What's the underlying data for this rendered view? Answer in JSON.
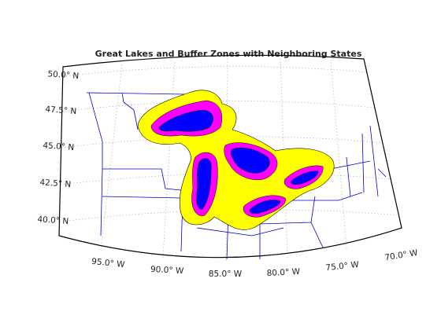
{
  "title": "Great Lakes and Buffer Zones with Neighboring States",
  "parallel_labels": [
    "50.0° N",
    "47.5° N",
    "45.0° N",
    "42.5° N",
    "40.0° N"
  ],
  "meridian_labels": [
    "95.0° W",
    "90.0° W",
    "85.0° W",
    "80.0° W",
    "75.0° W",
    "70.0° W"
  ]
}
